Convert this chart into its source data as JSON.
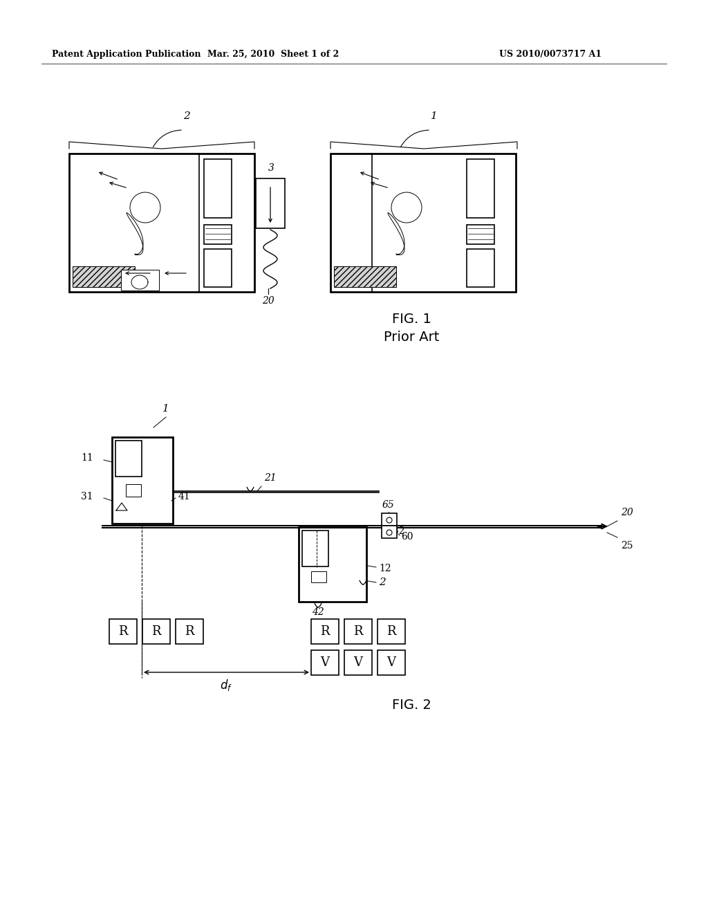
{
  "bg_color": "#ffffff",
  "header_left": "Patent Application Publication",
  "header_mid": "Mar. 25, 2010  Sheet 1 of 2",
  "header_right": "US 2010/0073717 A1",
  "fig1_label": "FIG. 1",
  "fig1_sublabel": "Prior Art",
  "fig2_label": "FIG. 2",
  "label_color": "#222222"
}
